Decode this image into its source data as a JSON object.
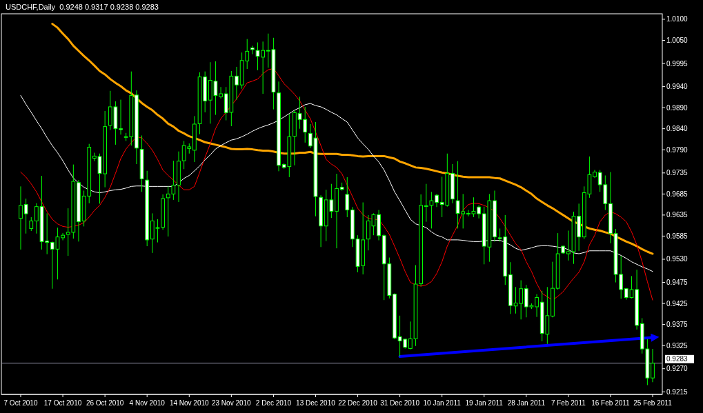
{
  "chart_data": {
    "type": "candlestick",
    "title": "USDCHF,Daily  0.9248 0.9317 0.9238 0.9283",
    "color": "#00ff00",
    "categories": [
      "7 Oct 2010",
      null,
      null,
      null,
      null,
      null,
      null,
      null,
      "17 Oct 2010",
      null,
      null,
      null,
      null,
      null,
      null,
      null,
      "26 Oct 2010",
      null,
      null,
      null,
      null,
      null,
      null,
      null,
      "4 Nov 2010",
      null,
      null,
      null,
      null,
      null,
      null,
      null,
      "14 Nov 2010",
      null,
      null,
      null,
      null,
      null,
      null,
      null,
      "23 Nov 2010",
      null,
      null,
      null,
      null,
      null,
      null,
      null,
      "2 Dec 2010",
      null,
      null,
      null,
      null,
      null,
      null,
      null,
      "13 Dec 2010",
      null,
      null,
      null,
      null,
      null,
      null,
      null,
      "22 Dec 2010",
      null,
      null,
      null,
      null,
      null,
      null,
      null,
      "31 Dec 2010",
      null,
      null,
      null,
      null,
      null,
      null,
      null,
      "10 Jan 2011",
      null,
      null,
      null,
      null,
      null,
      null,
      null,
      "19 Jan 2011",
      null,
      null,
      null,
      null,
      null,
      null,
      null,
      "28 Jan 2011",
      null,
      null,
      null,
      null,
      null,
      null,
      null,
      "7 Feb 2011",
      null,
      null,
      null,
      null,
      null,
      null,
      null,
      "16 Feb 2011",
      null,
      null,
      null,
      null,
      null,
      null,
      null,
      "25 Feb 2011"
    ],
    "ohlc": [
      [
        0.9627,
        0.9703,
        0.9553,
        0.9658
      ],
      [
        0.966,
        0.9674,
        0.9591,
        0.9638
      ],
      [
        0.9603,
        0.963,
        0.9597,
        0.9621
      ],
      [
        0.9621,
        0.9663,
        0.9591,
        0.9655
      ],
      [
        0.9655,
        0.9728,
        0.9553,
        0.9572
      ],
      [
        0.9573,
        0.9639,
        0.9542,
        0.957
      ],
      [
        0.957,
        0.9572,
        0.946,
        0.9554
      ],
      [
        0.9554,
        0.9605,
        0.9482,
        0.9583
      ],
      [
        0.9581,
        0.9592,
        0.9575,
        0.9587
      ],
      [
        0.9589,
        0.9651,
        0.9538,
        0.9594
      ],
      [
        0.9594,
        0.9755,
        0.9579,
        0.9715
      ],
      [
        0.9712,
        0.9718,
        0.9572,
        0.9619
      ],
      [
        0.9621,
        0.9693,
        0.9608,
        0.968
      ],
      [
        0.968,
        0.9804,
        0.9663,
        0.9796
      ],
      [
        0.977,
        0.9783,
        0.9763,
        0.9775
      ],
      [
        0.9774,
        0.9781,
        0.9662,
        0.9734
      ],
      [
        0.9733,
        0.9882,
        0.9701,
        0.9845
      ],
      [
        0.9848,
        0.993,
        0.9837,
        0.9892
      ],
      [
        0.9892,
        0.9905,
        0.9802,
        0.984
      ],
      [
        0.984,
        0.9909,
        0.9826,
        0.9838
      ],
      [
        0.9821,
        0.983,
        0.9811,
        0.9821
      ],
      [
        0.9821,
        0.9976,
        0.98,
        0.9919
      ],
      [
        0.992,
        0.9931,
        0.9756,
        0.9794
      ],
      [
        0.9791,
        0.9824,
        0.969,
        0.9721
      ],
      [
        0.9718,
        0.974,
        0.9561,
        0.9576
      ],
      [
        0.9578,
        0.9639,
        0.9545,
        0.9621
      ],
      [
        0.9605,
        0.9625,
        0.957,
        0.9605
      ],
      [
        0.9606,
        0.9684,
        0.96,
        0.9674
      ],
      [
        0.9676,
        0.9703,
        0.9584,
        0.9685
      ],
      [
        0.9685,
        0.9764,
        0.9671,
        0.9706
      ],
      [
        0.9706,
        0.9786,
        0.9666,
        0.9763
      ],
      [
        0.9764,
        0.9811,
        0.9744,
        0.98
      ],
      [
        0.9793,
        0.9805,
        0.9781,
        0.9797
      ],
      [
        0.9789,
        0.987,
        0.9761,
        0.9851
      ],
      [
        0.9852,
        0.9974,
        0.9827,
        0.9963
      ],
      [
        0.9963,
        0.9976,
        0.9879,
        0.9906
      ],
      [
        0.9908,
        0.9998,
        0.9852,
        0.9955
      ],
      [
        0.9953,
        1.0,
        0.9873,
        0.9919
      ],
      [
        0.9916,
        0.9939,
        0.9912,
        0.9923
      ],
      [
        0.9923,
        0.9939,
        0.986,
        0.9878
      ],
      [
        0.9879,
        0.9977,
        0.9846,
        0.9965
      ],
      [
        0.9965,
        0.9987,
        0.9909,
        0.9944
      ],
      [
        0.9944,
        1.0021,
        0.9935,
        1.0002
      ],
      [
        1.0001,
        1.0053,
        0.9982,
        1.0024
      ],
      [
        1.0032,
        1.0037,
        1.0017,
        1.0028
      ],
      [
        1.0026,
        1.0045,
        0.9979,
        1.0012
      ],
      [
        1.001,
        1.0047,
        0.9923,
        1.0026
      ],
      [
        1.0026,
        1.0066,
        0.9985,
        1.0026
      ],
      [
        1.0028,
        1.0056,
        0.9886,
        0.9927
      ],
      [
        0.9925,
        0.9952,
        0.9739,
        0.9753
      ],
      [
        0.9755,
        0.9758,
        0.9745,
        0.9748
      ],
      [
        0.975,
        0.9875,
        0.9725,
        0.9821
      ],
      [
        0.9822,
        0.9884,
        0.9753,
        0.9878
      ],
      [
        0.9876,
        0.9916,
        0.984,
        0.9862
      ],
      [
        0.9862,
        0.9892,
        0.9807,
        0.9832
      ],
      [
        0.9829,
        0.9851,
        0.9794,
        0.9799
      ],
      [
        0.9818,
        0.9856,
        0.9632,
        0.9679
      ],
      [
        0.9677,
        0.9682,
        0.9559,
        0.9609
      ],
      [
        0.9609,
        0.9695,
        0.9573,
        0.9671
      ],
      [
        0.9671,
        0.9709,
        0.9628,
        0.9644
      ],
      [
        0.9644,
        0.9733,
        0.9556,
        0.9698
      ],
      [
        0.9701,
        0.9712,
        0.9693,
        0.9696
      ],
      [
        0.9684,
        0.9725,
        0.963,
        0.9647
      ],
      [
        0.9647,
        0.9654,
        0.9559,
        0.9578
      ],
      [
        0.9578,
        0.9587,
        0.9499,
        0.9513
      ],
      [
        0.9515,
        0.9665,
        0.9494,
        0.9576
      ],
      [
        0.9578,
        0.9635,
        0.9551,
        0.9621
      ],
      [
        0.9609,
        0.9639,
        0.9587,
        0.9636
      ],
      [
        0.9636,
        0.9647,
        0.9575,
        0.9586
      ],
      [
        0.9586,
        0.9589,
        0.9433,
        0.9519
      ],
      [
        0.9519,
        0.9534,
        0.9437,
        0.9444
      ],
      [
        0.9447,
        0.9449,
        0.934,
        0.9343
      ],
      [
        0.9346,
        0.9396,
        0.9299,
        0.9336
      ],
      [
        0.934,
        0.9341,
        0.9318,
        0.9321
      ],
      [
        0.9318,
        0.9382,
        0.9316,
        0.9341
      ],
      [
        0.9341,
        0.9516,
        0.9324,
        0.9471
      ],
      [
        0.9472,
        0.9684,
        0.9466,
        0.9658
      ],
      [
        0.9657,
        0.9709,
        0.9619,
        0.9657
      ],
      [
        0.9658,
        0.969,
        0.9603,
        0.9669
      ],
      [
        0.9682,
        0.9685,
        0.9654,
        0.9665
      ],
      [
        0.9665,
        0.9726,
        0.963,
        0.966
      ],
      [
        0.9658,
        0.9781,
        0.9655,
        0.9734
      ],
      [
        0.9734,
        0.9756,
        0.9663,
        0.9673
      ],
      [
        0.9669,
        0.9763,
        0.9603,
        0.9639
      ],
      [
        0.9638,
        0.9685,
        0.9603,
        0.9643
      ],
      [
        0.9639,
        0.9647,
        0.9632,
        0.9639
      ],
      [
        0.9638,
        0.9677,
        0.963,
        0.9644
      ],
      [
        0.9654,
        0.9658,
        0.9627,
        0.9638
      ],
      [
        0.9638,
        0.9655,
        0.9518,
        0.9561
      ],
      [
        0.9559,
        0.9685,
        0.9524,
        0.9669
      ],
      [
        0.9669,
        0.9693,
        0.9572,
        0.9583
      ],
      [
        0.9581,
        0.9603,
        0.9572,
        0.9579
      ],
      [
        0.9583,
        0.9635,
        0.9469,
        0.949
      ],
      [
        0.9493,
        0.9523,
        0.94,
        0.942
      ],
      [
        0.9419,
        0.9464,
        0.9401,
        0.9426
      ],
      [
        0.9425,
        0.948,
        0.9387,
        0.946
      ],
      [
        0.946,
        0.9469,
        0.9392,
        0.9417
      ],
      [
        0.9417,
        0.9425,
        0.9412,
        0.942
      ],
      [
        0.9417,
        0.9447,
        0.9393,
        0.9439
      ],
      [
        0.9428,
        0.9455,
        0.9335,
        0.9354
      ],
      [
        0.9352,
        0.9464,
        0.9329,
        0.9396
      ],
      [
        0.9395,
        0.9524,
        0.9392,
        0.9461
      ],
      [
        0.9461,
        0.9592,
        0.9458,
        0.9543
      ],
      [
        0.9561,
        0.9562,
        0.9543,
        0.9545
      ],
      [
        0.9543,
        0.9598,
        0.9527,
        0.9548
      ],
      [
        0.9548,
        0.9643,
        0.9519,
        0.9632
      ],
      [
        0.9632,
        0.9662,
        0.955,
        0.9583
      ],
      [
        0.9583,
        0.9703,
        0.9578,
        0.9688
      ],
      [
        0.9685,
        0.9774,
        0.9676,
        0.9731
      ],
      [
        0.9726,
        0.9742,
        0.9723,
        0.9737
      ],
      [
        0.9736,
        0.9742,
        0.969,
        0.9707
      ],
      [
        0.9707,
        0.9729,
        0.9647,
        0.9662
      ],
      [
        0.9662,
        0.9737,
        0.9568,
        0.9591
      ],
      [
        0.9591,
        0.9602,
        0.9475,
        0.9494
      ],
      [
        0.9494,
        0.9538,
        0.9436,
        0.9458
      ],
      [
        0.946,
        0.9461,
        0.9434,
        0.9439
      ],
      [
        0.9439,
        0.949,
        0.9437,
        0.9458
      ],
      [
        0.9458,
        0.9505,
        0.9363,
        0.9373
      ],
      [
        0.9377,
        0.939,
        0.9306,
        0.9317
      ],
      [
        0.9317,
        0.934,
        0.9231,
        0.9248
      ],
      [
        0.9248,
        0.9317,
        0.9238,
        0.9283
      ]
    ],
    "series": [
      {
        "type": "line",
        "color": "#ffa500",
        "values": [
          null,
          null,
          null,
          null,
          null,
          null,
          1.0089,
          1.008,
          1.0066,
          1.0053,
          1.0037,
          1.0025,
          1.0013,
          1.0002,
          0.999,
          0.9977,
          0.9969,
          0.9958,
          0.9949,
          0.9941,
          0.9931,
          0.9924,
          0.9912,
          0.9901,
          0.9892,
          0.9884,
          0.9873,
          0.9864,
          0.9852,
          0.9845,
          0.9835,
          0.9829,
          0.9822,
          0.9818,
          0.9813,
          0.9808,
          0.9805,
          0.9802,
          0.9799,
          0.9796,
          0.9792,
          0.9791,
          0.9791,
          0.9792,
          0.9791,
          0.9789,
          0.9788,
          0.9788,
          0.9786,
          0.9783,
          0.9781,
          0.9781,
          0.9781,
          0.9783,
          0.9783,
          0.9785,
          0.9781,
          0.978,
          0.978,
          0.978,
          0.978,
          0.9778,
          0.9778,
          0.9777,
          0.9775,
          0.9774,
          0.9775,
          0.9775,
          0.9775,
          0.9775,
          0.9772,
          0.9769,
          0.9762,
          0.9758,
          0.9753,
          0.9748,
          0.9747,
          0.9745,
          0.9742,
          0.9739,
          0.9736,
          0.9734,
          0.9731,
          0.9728,
          0.9726,
          0.9725,
          0.9725,
          0.9725,
          0.9725,
          0.9725,
          0.9723,
          0.9722,
          0.9717,
          0.9712,
          0.9707,
          0.9701,
          0.9693,
          0.9685,
          0.9674,
          0.9666,
          0.9658,
          0.9651,
          0.9643,
          0.9635,
          0.9627,
          0.9619,
          0.9614,
          0.9608,
          0.9603,
          0.96,
          0.9598,
          0.9594,
          0.9591,
          0.9584,
          0.9578,
          0.9572,
          0.9567,
          0.9561,
          0.9554,
          0.9548,
          0.9543
        ]
      },
      {
        "type": "line",
        "color": "#ffffff",
        "values": [
          0.9919,
          0.9898,
          0.9879,
          0.9859,
          0.984,
          0.9819,
          0.98,
          0.9783,
          0.9764,
          0.9742,
          0.9723,
          0.9711,
          0.9701,
          0.9695,
          0.969,
          0.9688,
          0.969,
          0.9693,
          0.9695,
          0.9696,
          0.9699,
          0.9703,
          0.9704,
          0.9704,
          0.9703,
          0.9703,
          0.9703,
          0.9703,
          0.9703,
          0.9703,
          0.9711,
          0.9722,
          0.9729,
          0.974,
          0.9752,
          0.9766,
          0.9778,
          0.9792,
          0.98,
          0.9807,
          0.9813,
          0.9816,
          0.9821,
          0.9827,
          0.9834,
          0.984,
          0.9845,
          0.9849,
          0.9854,
          0.986,
          0.9868,
          0.9876,
          0.9884,
          0.989,
          0.9897,
          0.99,
          0.9895,
          0.9892,
          0.9886,
          0.9879,
          0.9873,
          0.9864,
          0.9856,
          0.9837,
          0.9818,
          0.9804,
          0.9791,
          0.9775,
          0.9761,
          0.9742,
          0.9717,
          0.969,
          0.9669,
          0.9647,
          0.9625,
          0.9614,
          0.961,
          0.9605,
          0.9595,
          0.9587,
          0.9583,
          0.9576,
          0.9576,
          0.9576,
          0.9575,
          0.9573,
          0.9572,
          0.9572,
          0.9573,
          0.9575,
          0.9575,
          0.9575,
          0.957,
          0.9564,
          0.9556,
          0.9551,
          0.9554,
          0.9557,
          0.9561,
          0.9562,
          0.9562,
          0.9561,
          0.9559,
          0.9557,
          0.9553,
          0.9545,
          0.9543,
          0.9546,
          0.955,
          0.955,
          0.955,
          0.955,
          0.955,
          0.9545,
          0.9539,
          0.9532,
          0.9524,
          0.9518,
          0.9512,
          0.9507,
          0.9501
        ]
      },
      {
        "type": "line",
        "color": "#ff0000",
        "values": [
          0.9737,
          0.9725,
          0.9709,
          0.969,
          0.9666,
          0.9643,
          0.9625,
          0.9614,
          0.9608,
          0.9606,
          0.9608,
          0.9611,
          0.9617,
          0.963,
          0.9646,
          0.9658,
          0.9677,
          0.9701,
          0.9734,
          0.9769,
          0.9792,
          0.9807,
          0.9821,
          0.9818,
          0.9805,
          0.9789,
          0.9767,
          0.9742,
          0.9729,
          0.9718,
          0.9706,
          0.9695,
          0.9695,
          0.9703,
          0.9737,
          0.9772,
          0.9804,
          0.984,
          0.9864,
          0.9879,
          0.9895,
          0.9911,
          0.993,
          0.9949,
          0.9953,
          0.9958,
          0.9971,
          0.998,
          0.9983,
          0.9966,
          0.9947,
          0.9935,
          0.9922,
          0.9906,
          0.9884,
          0.9864,
          0.9832,
          0.98,
          0.9767,
          0.9756,
          0.9748,
          0.9733,
          0.9706,
          0.9679,
          0.9651,
          0.9636,
          0.9627,
          0.9625,
          0.9624,
          0.9608,
          0.9589,
          0.9561,
          0.9532,
          0.9501,
          0.9475,
          0.9469,
          0.9466,
          0.9469,
          0.9477,
          0.9496,
          0.9524,
          0.9561,
          0.9587,
          0.9611,
          0.9646,
          0.966,
          0.9663,
          0.9662,
          0.9658,
          0.9652,
          0.9643,
          0.9627,
          0.9608,
          0.9587,
          0.9567,
          0.9553,
          0.9524,
          0.9501,
          0.9472,
          0.9449,
          0.9441,
          0.9433,
          0.9442,
          0.9453,
          0.9469,
          0.9485,
          0.9499,
          0.9524,
          0.9564,
          0.9587,
          0.9619,
          0.9635,
          0.9643,
          0.9638,
          0.963,
          0.9619,
          0.9595,
          0.9564,
          0.9524,
          0.9477,
          0.9433
        ]
      },
      {
        "type": "line",
        "color": "#0000ff",
        "x": [
          "31 Dec 2010",
          "25 Feb 2011"
        ],
        "values": [
          0.9299,
          0.9344
        ]
      }
    ],
    "ylim": [
      0.9209,
      1.0113
    ],
    "yticks": [
      {
        "value": 1.01,
        "label": "1.0100"
      },
      {
        "value": 1.005,
        "label": "1.0050"
      },
      0.9995,
      {
        "value": 0.994,
        "label": "0.9940"
      },
      {
        "value": 0.989,
        "label": "0.9890"
      },
      {
        "value": 0.984,
        "label": "0.9840"
      },
      {
        "value": 0.979,
        "label": "0.9790"
      },
      0.9735,
      0.9685,
      0.9635,
      0.9585,
      {
        "value": 0.953,
        "label": "0.9530"
      },
      0.9475,
      0.9425,
      0.9375,
      0.9325,
      {
        "value": 0.927,
        "label": "0.9270"
      },
      0.9215
    ],
    "ref_lines": [
      {
        "axis": "y",
        "value": 0.9283,
        "label": "0.9283",
        "color": "#8c8ca0"
      }
    ]
  }
}
